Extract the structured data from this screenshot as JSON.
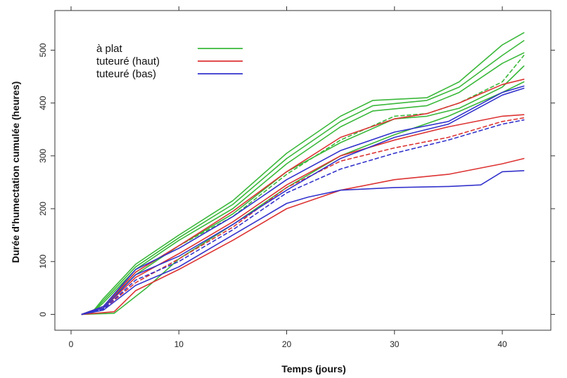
{
  "chart_data": {
    "type": "line",
    "title": "",
    "xlabel": "Temps (jours)",
    "ylabel": "Durée d'humectation cumulée (heures)",
    "xlim": [
      -1.5,
      44.5
    ],
    "ylim": [
      -30,
      575
    ],
    "x_ticks": [
      0,
      10,
      20,
      30,
      40
    ],
    "y_ticks": [
      0,
      100,
      200,
      300,
      400,
      500
    ],
    "grid": false,
    "legend_position": "top-left",
    "legend": [
      {
        "label": "à plat",
        "color": "#3ab83a"
      },
      {
        "label": "tuteuré (haut)",
        "color": "#dd3333"
      },
      {
        "label": "tuteuré (bas)",
        "color": "#3333cc"
      }
    ],
    "series": [
      {
        "group": "à plat",
        "color": "#3ab83a",
        "dash": "solid",
        "x": [
          1,
          2,
          3,
          6,
          10,
          15,
          20,
          25,
          28,
          33,
          36,
          40,
          42
        ],
        "y": [
          0,
          5,
          30,
          95,
          150,
          215,
          305,
          375,
          405,
          410,
          440,
          510,
          533
        ]
      },
      {
        "group": "à plat",
        "color": "#3ab83a",
        "dash": "solid",
        "x": [
          1,
          2,
          3,
          6,
          10,
          15,
          20,
          25,
          28,
          33,
          36,
          40,
          42
        ],
        "y": [
          0,
          4,
          26,
          90,
          145,
          208,
          295,
          365,
          395,
          405,
          430,
          490,
          518
        ]
      },
      {
        "group": "à plat",
        "color": "#3ab83a",
        "dash": "solid",
        "x": [
          1,
          2,
          3,
          6,
          10,
          15,
          20,
          25,
          28,
          33,
          36,
          40,
          42
        ],
        "y": [
          0,
          3,
          22,
          85,
          140,
          200,
          285,
          355,
          385,
          395,
          420,
          475,
          495
        ]
      },
      {
        "group": "à plat",
        "color": "#3ab83a",
        "dash": "solid",
        "x": [
          1,
          3,
          6,
          10,
          15,
          20,
          25,
          30,
          33,
          36,
          40,
          42
        ],
        "y": [
          0,
          15,
          75,
          130,
          190,
          270,
          325,
          370,
          375,
          390,
          430,
          470
        ]
      },
      {
        "group": "à plat",
        "color": "#3ab83a",
        "dash": "dashed",
        "x": [
          1,
          3,
          6,
          10,
          15,
          20,
          25,
          30,
          33,
          36,
          40,
          42
        ],
        "y": [
          0,
          15,
          80,
          130,
          185,
          265,
          330,
          375,
          380,
          400,
          440,
          490
        ]
      },
      {
        "group": "à plat",
        "color": "#3ab83a",
        "dash": "solid",
        "x": [
          1,
          4,
          7,
          10,
          15,
          20,
          25,
          30,
          35,
          40,
          42
        ],
        "y": [
          0,
          2,
          50,
          105,
          170,
          240,
          300,
          340,
          375,
          420,
          440
        ]
      },
      {
        "group": "tuteuré (haut)",
        "color": "#dd3333",
        "dash": "solid",
        "x": [
          1,
          3,
          6,
          10,
          15,
          20,
          25,
          30,
          33,
          36,
          40,
          42
        ],
        "y": [
          0,
          15,
          80,
          130,
          195,
          270,
          335,
          370,
          380,
          400,
          435,
          445
        ]
      },
      {
        "group": "tuteuré (haut)",
        "color": "#dd3333",
        "dash": "solid",
        "x": [
          1,
          3,
          6,
          10,
          15,
          20,
          25,
          30,
          35,
          40,
          42
        ],
        "y": [
          0,
          12,
          70,
          115,
          175,
          245,
          300,
          330,
          355,
          375,
          378
        ]
      },
      {
        "group": "tuteuré (haut)",
        "color": "#dd3333",
        "dash": "dashed",
        "x": [
          1,
          3,
          6,
          10,
          15,
          20,
          25,
          30,
          35,
          40,
          42
        ],
        "y": [
          0,
          10,
          60,
          105,
          165,
          240,
          290,
          315,
          335,
          365,
          372
        ]
      },
      {
        "group": "tuteuré (haut)",
        "color": "#dd3333",
        "dash": "solid",
        "x": [
          1,
          4,
          6,
          10,
          15,
          20,
          25,
          30,
          35,
          40,
          42
        ],
        "y": [
          0,
          5,
          45,
          85,
          140,
          200,
          235,
          255,
          265,
          285,
          295
        ]
      },
      {
        "group": "tuteuré (bas)",
        "color": "#3333cc",
        "dash": "solid",
        "x": [
          1,
          3,
          6,
          10,
          15,
          20,
          25,
          30,
          35,
          40,
          42
        ],
        "y": [
          0,
          15,
          85,
          125,
          185,
          255,
          310,
          345,
          365,
          420,
          432
        ]
      },
      {
        "group": "tuteuré (bas)",
        "color": "#3333cc",
        "dash": "solid",
        "x": [
          1,
          3,
          6,
          10,
          15,
          20,
          25,
          30,
          35,
          40,
          42
        ],
        "y": [
          0,
          12,
          75,
          110,
          170,
          235,
          295,
          335,
          360,
          415,
          428
        ]
      },
      {
        "group": "tuteuré (bas)",
        "color": "#3333cc",
        "dash": "dashed",
        "x": [
          1,
          3,
          6,
          10,
          15,
          20,
          25,
          30,
          35,
          40,
          42
        ],
        "y": [
          0,
          10,
          65,
          100,
          160,
          230,
          275,
          305,
          330,
          360,
          368
        ]
      },
      {
        "group": "tuteuré (bas)",
        "color": "#3333cc",
        "dash": "solid",
        "x": [
          1,
          3,
          6,
          10,
          15,
          20,
          22,
          25,
          30,
          35,
          38,
          40,
          42
        ],
        "y": [
          0,
          8,
          55,
          90,
          150,
          210,
          222,
          235,
          240,
          242,
          245,
          270,
          272
        ]
      }
    ]
  }
}
